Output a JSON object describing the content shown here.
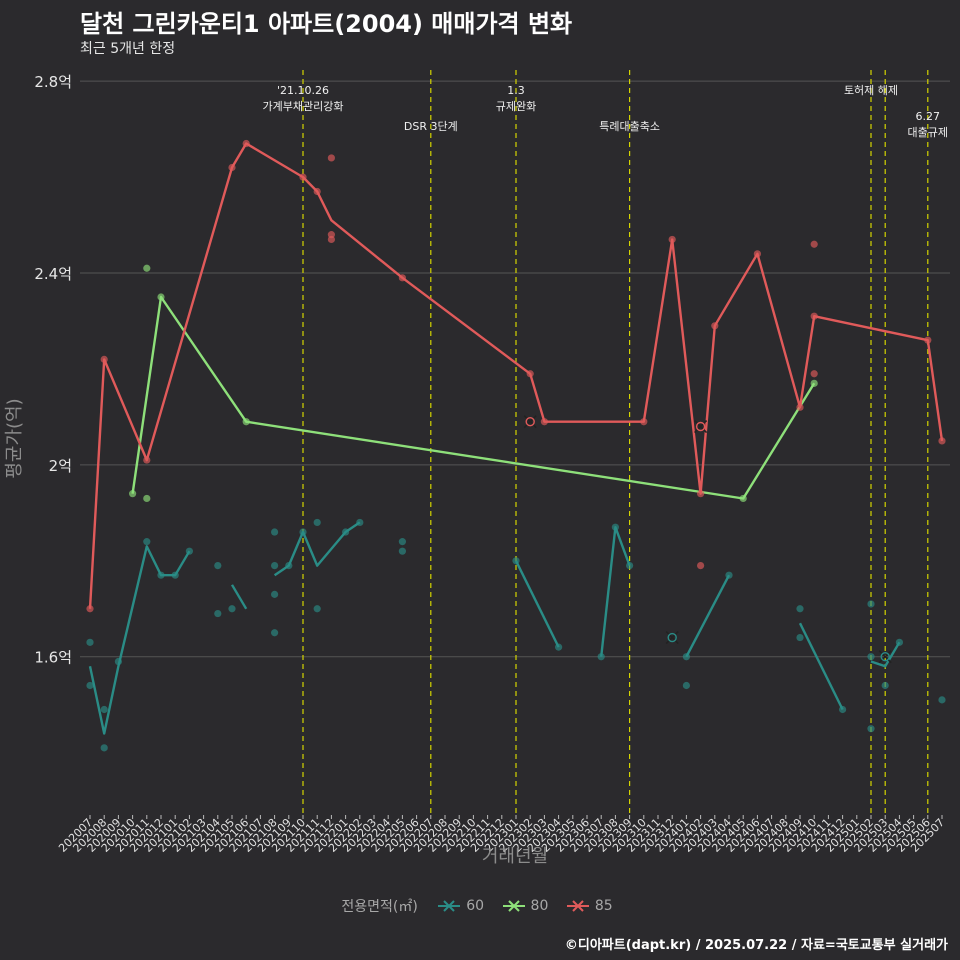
{
  "header": {
    "title": "달천 그린카운티1 아파트(2004) 매매가격 변화",
    "subtitle": "최근 5개년 한정"
  },
  "caption": "©디아파트(dapt.kr) / 2025.07.22 / 자료=국토교통부 실거래가",
  "colors": {
    "background": "#2b2a2d",
    "grid": "#555555",
    "event_line": "#d4d400",
    "s60": "#2a8c86",
    "s80": "#8ee07a",
    "s85": "#e05a5a"
  },
  "chart_data": {
    "type": "line",
    "title": "달천 그린카운티1 아파트(2004) 매매가격 변화",
    "subtitle": "최근 5개년 한정",
    "xlabel": "거래년월",
    "ylabel": "평균가(억)",
    "legend_title": "전용면적(㎡)",
    "legend_position": "bottom",
    "grid": true,
    "ylim": [
      1.27,
      2.84
    ],
    "yticks": [
      {
        "value": 1.6,
        "label": "1.6억"
      },
      {
        "value": 2.0,
        "label": "2억"
      },
      {
        "value": 2.4,
        "label": "2.4억"
      },
      {
        "value": 2.8,
        "label": "2.8억"
      }
    ],
    "x_categories": [
      "202007",
      "202008",
      "202009",
      "202010",
      "202011",
      "202012",
      "202101",
      "202102",
      "202103",
      "202104",
      "202105",
      "202106",
      "202107",
      "202108",
      "202109",
      "202110",
      "202111",
      "202112",
      "202201",
      "202202",
      "202203",
      "202204",
      "202205",
      "202206",
      "202207",
      "202208",
      "202209",
      "202210",
      "202211",
      "202212",
      "202301",
      "202302",
      "202303",
      "202304",
      "202305",
      "202306",
      "202307",
      "202308",
      "202309",
      "202310",
      "202311",
      "202312",
      "202401",
      "202402",
      "202403",
      "202404",
      "202405",
      "202406",
      "202407",
      "202408",
      "202409",
      "202410",
      "202411",
      "202412",
      "202501",
      "202502",
      "202503",
      "202504",
      "202505",
      "202506",
      "202507"
    ],
    "events": [
      {
        "x": "202110",
        "lines": [
          "'21.10.26",
          "가계부채관리강화"
        ],
        "level": 1
      },
      {
        "x": "202207",
        "lines": [
          "DSR 3단계"
        ],
        "level": 2
      },
      {
        "x": "202301",
        "lines": [
          "1.3",
          "규제완화"
        ],
        "level": 1
      },
      {
        "x": "202309",
        "lines": [
          "특례대출축소"
        ],
        "level": 2
      },
      {
        "x": "202502",
        "lines": [
          "토허제 해제"
        ],
        "level": 1
      },
      {
        "x": "202503",
        "lines": [],
        "level": 1
      },
      {
        "x": "202506",
        "lines": [
          "6.27",
          "대출규제"
        ],
        "level": 3
      }
    ],
    "series": [
      {
        "name": "60",
        "color_key": "s60",
        "line": [
          [
            "202007",
            1.58
          ],
          [
            "202008",
            1.44
          ],
          [
            "202009",
            1.58
          ],
          [
            "202011",
            1.83
          ],
          [
            "202012",
            1.77
          ],
          [
            "202101",
            1.77
          ],
          [
            "202102",
            1.82
          ],
          null,
          [
            "202105",
            1.75
          ],
          [
            "202106",
            1.7
          ],
          null,
          [
            "202108",
            1.77
          ],
          [
            "202109",
            1.79
          ],
          [
            "202110",
            1.86
          ],
          [
            "202111",
            1.79
          ],
          [
            "202201",
            1.86
          ],
          [
            "202202",
            1.88
          ],
          null,
          [
            "202301",
            1.8
          ],
          [
            "202304",
            1.62
          ],
          null,
          [
            "202307",
            1.6
          ],
          [
            "202308",
            1.87
          ],
          [
            "202309",
            1.79
          ],
          null,
          [
            "202401",
            1.6
          ],
          [
            "202404",
            1.77
          ],
          null,
          [
            "202409",
            1.67
          ],
          [
            "202412",
            1.49
          ],
          null,
          [
            "202502",
            1.59
          ],
          [
            "202503",
            1.58
          ],
          [
            "202504",
            1.63
          ]
        ],
        "points": [
          [
            "202007",
            1.63
          ],
          [
            "202007",
            1.54
          ],
          [
            "202008",
            1.49
          ],
          [
            "202008",
            1.41
          ],
          [
            "202009",
            1.59
          ],
          [
            "202011",
            1.84
          ],
          [
            "202012",
            1.77
          ],
          [
            "202101",
            1.77
          ],
          [
            "202102",
            1.82
          ],
          [
            "202104",
            1.79
          ],
          [
            "202104",
            1.69
          ],
          [
            "202105",
            1.7
          ],
          [
            "202108",
            1.86
          ],
          [
            "202108",
            1.79
          ],
          [
            "202108",
            1.73
          ],
          [
            "202108",
            1.65
          ],
          [
            "202109",
            1.79
          ],
          [
            "202110",
            1.86
          ],
          [
            "202111",
            1.88
          ],
          [
            "202111",
            1.7
          ],
          [
            "202201",
            1.86
          ],
          [
            "202202",
            1.88
          ],
          [
            "202205",
            1.84
          ],
          [
            "202205",
            1.82
          ],
          [
            "202301",
            1.8
          ],
          [
            "202304",
            1.62
          ],
          [
            "202307",
            1.6
          ],
          [
            "202308",
            1.87
          ],
          [
            "202309",
            1.79
          ],
          [
            "202401",
            1.6
          ],
          [
            "202401",
            1.54
          ],
          [
            "202404",
            1.77
          ],
          [
            "202409",
            1.7
          ],
          [
            "202409",
            1.64
          ],
          [
            "202412",
            1.49
          ],
          [
            "202502",
            1.71
          ],
          [
            "202502",
            1.6
          ],
          [
            "202502",
            1.45
          ],
          [
            "202503",
            1.54
          ],
          [
            "202504",
            1.63
          ],
          [
            "202507",
            1.51
          ]
        ],
        "cross": [
          [
            "202312",
            1.64
          ],
          [
            "202503",
            1.6
          ]
        ]
      },
      {
        "name": "80",
        "color_key": "s80",
        "line": [
          [
            "202010",
            1.94
          ],
          [
            "202012",
            2.35
          ],
          [
            "202106",
            2.09
          ],
          [
            "202405",
            1.93
          ],
          [
            "202410",
            2.17
          ]
        ],
        "points": [
          [
            "202010",
            1.94
          ],
          [
            "202011",
            2.41
          ],
          [
            "202011",
            1.93
          ],
          [
            "202012",
            2.35
          ],
          [
            "202106",
            2.09
          ],
          [
            "202405",
            1.93
          ],
          [
            "202410",
            2.17
          ]
        ],
        "cross": []
      },
      {
        "name": "85",
        "color_key": "s85",
        "line": [
          [
            "202007",
            1.7
          ],
          [
            "202008",
            2.22
          ],
          [
            "202011",
            2.01
          ],
          [
            "202105",
            2.62
          ],
          [
            "202106",
            2.67
          ],
          [
            "202110",
            2.6
          ],
          [
            "202111",
            2.57
          ],
          [
            "202112",
            2.51
          ],
          [
            "202205",
            2.39
          ],
          [
            "202302",
            2.19
          ],
          [
            "202303",
            2.09
          ],
          [
            "202310",
            2.09
          ],
          [
            "202312",
            2.47
          ],
          [
            "202402",
            1.94
          ],
          [
            "202403",
            2.29
          ],
          [
            "202406",
            2.44
          ],
          [
            "202409",
            2.12
          ],
          [
            "202410",
            2.31
          ],
          [
            "202506",
            2.26
          ],
          [
            "202507",
            2.05
          ]
        ],
        "points": [
          [
            "202007",
            1.7
          ],
          [
            "202008",
            2.22
          ],
          [
            "202011",
            2.01
          ],
          [
            "202105",
            2.62
          ],
          [
            "202106",
            2.67
          ],
          [
            "202110",
            2.6
          ],
          [
            "202111",
            2.57
          ],
          [
            "202112",
            2.64
          ],
          [
            "202112",
            2.47
          ],
          [
            "202112",
            2.48
          ],
          [
            "202205",
            2.39
          ],
          [
            "202302",
            2.19
          ],
          [
            "202303",
            2.09
          ],
          [
            "202310",
            2.09
          ],
          [
            "202312",
            2.47
          ],
          [
            "202402",
            1.94
          ],
          [
            "202402",
            1.79
          ],
          [
            "202403",
            2.29
          ],
          [
            "202406",
            2.44
          ],
          [
            "202409",
            2.12
          ],
          [
            "202410",
            2.31
          ],
          [
            "202410",
            2.19
          ],
          [
            "202410",
            2.46
          ],
          [
            "202506",
            2.26
          ],
          [
            "202507",
            2.05
          ]
        ],
        "cross": [
          [
            "202302",
            2.09
          ],
          [
            "202402",
            2.08
          ]
        ]
      }
    ]
  }
}
